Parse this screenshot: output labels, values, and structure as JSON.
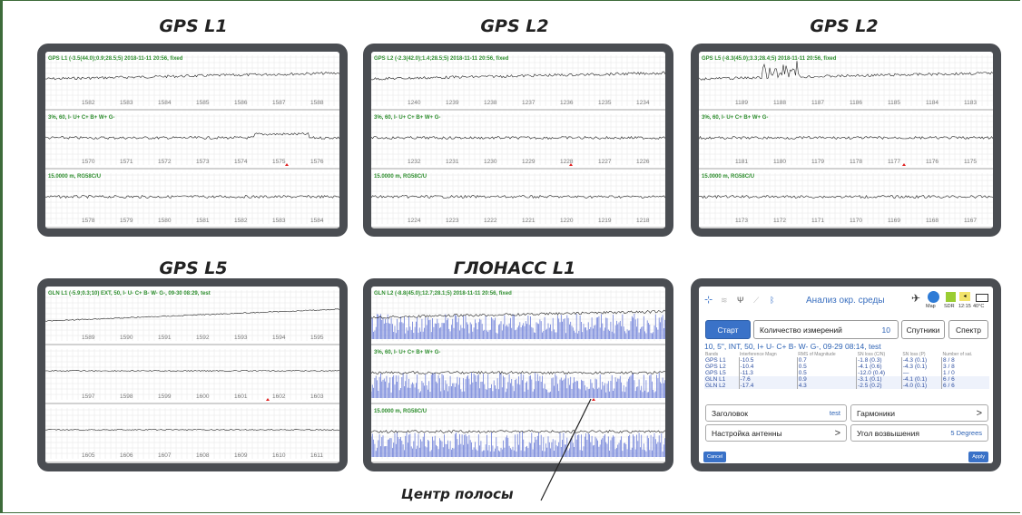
{
  "figure": {
    "titles": [
      "GPS L1",
      "GPS L2",
      "GPS L2",
      "GPS L5",
      "ГЛОНАСС L1"
    ],
    "annotation": "Центр полосы"
  },
  "panels": [
    {
      "row_labels": [
        "GPS L1 (-3.5(44.0);0.9;28.5;5) 2018-11-11 20:56, fixed",
        "3%, 60, I- U+ C+ B+ W+ G-",
        "15.0000 m, RG58C/U"
      ],
      "axes": [
        [
          "1582",
          "1583",
          "1584",
          "1585",
          "1586",
          "1587",
          "1588"
        ],
        [
          "1570",
          "1571",
          "1572",
          "1573",
          "1574",
          "1575",
          "1576"
        ],
        [
          "1578",
          "1579",
          "1580",
          "1581",
          "1582",
          "1583",
          "1584"
        ]
      ]
    },
    {
      "row_labels": [
        "GPS L2 (-2.3(42.0);1.4;28.5;5) 2018-11-11 20:56, fixed",
        "3%, 60, I- U+ C+ B+ W+ G-",
        "15.0000 m, RG58C/U"
      ],
      "axes": [
        [
          "1240",
          "1239",
          "1238",
          "1237",
          "1236",
          "1235",
          "1234"
        ],
        [
          "1232",
          "1231",
          "1230",
          "1229",
          "1228",
          "1227",
          "1226"
        ],
        [
          "1224",
          "1223",
          "1222",
          "1221",
          "1220",
          "1219",
          "1218"
        ]
      ]
    },
    {
      "row_labels": [
        "GPS L5 (-8.3(45.0);3.3;28.4;5) 2018-11-11 20:56, fixed",
        "3%, 60, I- U+ C+ B+ W+ G-",
        "15.0000 m, RG58C/U"
      ],
      "axes": [
        [
          "1189",
          "1188",
          "1187",
          "1186",
          "1185",
          "1184",
          "1183"
        ],
        [
          "1181",
          "1180",
          "1179",
          "1178",
          "1177",
          "1176",
          "1175"
        ],
        [
          "1173",
          "1172",
          "1171",
          "1170",
          "1169",
          "1168",
          "1167"
        ]
      ]
    },
    {
      "row_labels": [
        "GLN L1 (-5.9;0.3;10) EXT, 50, I- U- C+ B- W- G-, 09-30 08:29, test",
        "",
        ""
      ],
      "axes": [
        [
          "1589",
          "1590",
          "1591",
          "1592",
          "1593",
          "1594",
          "1595"
        ],
        [
          "1597",
          "1598",
          "1599",
          "1600",
          "1601",
          "1602",
          "1603"
        ],
        [
          "1605",
          "1606",
          "1607",
          "1608",
          "1609",
          "1610",
          "1611"
        ]
      ]
    },
    {
      "row_labels": [
        "GLN L2 (-8.8(45.0);12.7;28.1;5) 2018-11-11 20:56, fixed",
        "3%, 60, I- U+ C+ B+ W+ G-",
        "15.0000 m, RG58C/U"
      ],
      "axes": [
        [],
        [],
        []
      ]
    }
  ],
  "control": {
    "header_title": "Анализ окр. среды",
    "map_label": "Map",
    "status_icons": [
      "SDR",
      "12:15",
      "40°C"
    ],
    "buttons": {
      "start": "Старт",
      "measure_count_label": "Количество измерений",
      "measure_count_value": "10",
      "satellites": "Спутники",
      "spectrum": "Спектр"
    },
    "status_line": "10, 5\", INT, 50, I+ U- C+ B- W- G-, 09-29 08:14, test",
    "table": {
      "headers": [
        "Bands",
        "Interference Magn",
        "RMS of Magnitude",
        "SN loss (C/N)",
        "SN loss (P)",
        "Number of sat."
      ],
      "rows": [
        [
          "GPS L1",
          "-10.5",
          "0.7",
          "-1.8 (0.3)",
          "-4.3 (0.1)",
          "8 / 8"
        ],
        [
          "GPS L2",
          "-10.4",
          "0.5",
          "-4.1 (0.6)",
          "-4.3 (0.1)",
          "3 / 8"
        ],
        [
          "GPS L5",
          "-11.3",
          "0.5",
          "-12.0 (0.4)",
          "—",
          "1 / 0"
        ],
        [
          "GLN L1",
          "-7.6",
          "0.9",
          "-3.1 (0.1)",
          "-4.1 (0.1)",
          "6 / 6"
        ],
        [
          "GLN L2",
          "-17.4",
          "4.3",
          "-2.5 (0.2)",
          "-4.0 (0.1)",
          "6 / 6"
        ]
      ]
    },
    "settings": {
      "header_label": "Заголовок",
      "header_value": "test",
      "harmonics_label": "Гармоники",
      "antenna_label": "Настройка антенны",
      "elevation_label": "Угол возвышения",
      "elevation_value": "5 Degrees"
    },
    "cancel": "Cancel",
    "apply": "Apply"
  },
  "colors": {
    "frame": "#3d6b3a",
    "device": "#4a4d52",
    "label_green": "#2f8f2f",
    "accent_blue": "#3a72c8",
    "marker_red": "#e02020"
  }
}
